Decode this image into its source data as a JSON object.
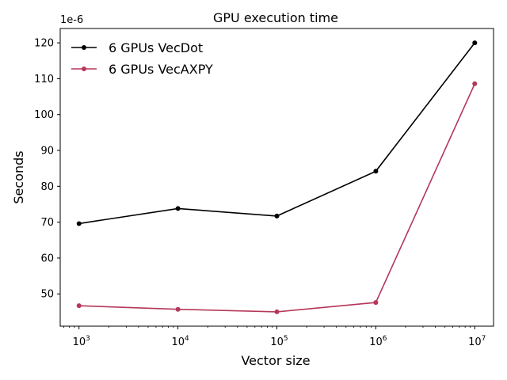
{
  "chart_data": {
    "type": "line",
    "title": "GPU execution time",
    "xlabel": "Vector size",
    "ylabel": "Seconds",
    "y_offset_label": "1e-6",
    "x_scale": "log",
    "x": [
      1000,
      10000,
      100000,
      1000000,
      10000000
    ],
    "x_tick_labels": [
      {
        "base": "10",
        "exp": "3"
      },
      {
        "base": "10",
        "exp": "4"
      },
      {
        "base": "10",
        "exp": "5"
      },
      {
        "base": "10",
        "exp": "6"
      },
      {
        "base": "10",
        "exp": "7"
      }
    ],
    "y_ticks": [
      50,
      60,
      70,
      80,
      90,
      100,
      110,
      120
    ],
    "y_tick_labels": [
      "50",
      "60",
      "70",
      "80",
      "90",
      "100",
      "110",
      "120"
    ],
    "ylim": [
      41,
      124
    ],
    "grid": false,
    "legend_position": "top-left",
    "series": [
      {
        "name": "6 GPUs VecDot",
        "color": "#000000",
        "values": [
          69.6,
          73.8,
          71.7,
          84.2,
          120.0
        ]
      },
      {
        "name": "6 GPUs VecAXPY",
        "color": "#b5375a",
        "values": [
          46.7,
          45.7,
          45.0,
          47.6,
          108.6
        ]
      }
    ]
  }
}
